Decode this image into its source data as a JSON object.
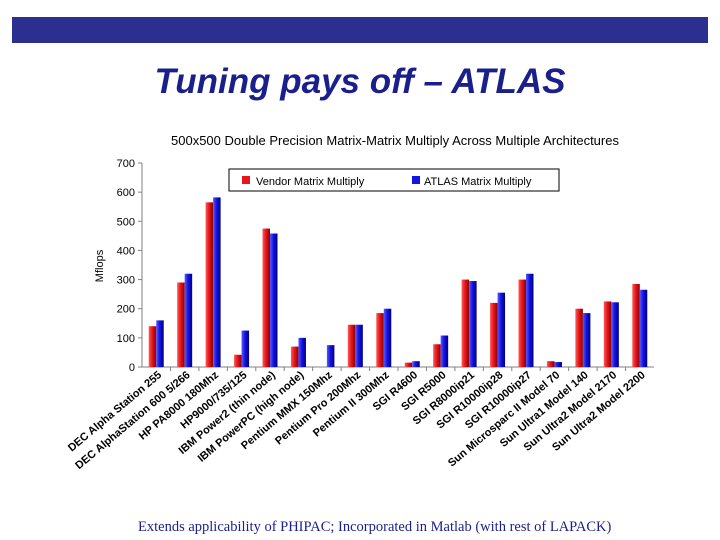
{
  "slide": {
    "title": "Tuning pays off – ATLAS",
    "footer": "Extends applicability of PHIPAC; Incorporated in Matlab (with rest of LAPACK)",
    "accent_color": "#2b2f8f"
  },
  "chart_data": {
    "type": "bar",
    "title": "500x500 Double Precision Matrix-Matrix Multiply Across Multiple Architectures",
    "xlabel": "",
    "ylabel": "Mflops",
    "ylim": [
      0,
      700
    ],
    "yticks": [
      0,
      100,
      200,
      300,
      400,
      500,
      600,
      700
    ],
    "grid": false,
    "legend_position": "top-center",
    "categories": [
      "DEC Alpha Station 255",
      "DEC AlphaStation 600 5/266",
      "HP PA8000 180Mhz",
      "HP9000/735/125",
      "IBM Power2 (thin node)",
      "IBM PowerPC (high node)",
      "Pentium MMX 150Mhz",
      "Pentium Pro 200Mhz",
      "Pentium II 300Mhz",
      "SGI R4600",
      "SGI R5000",
      "SGI R8000ip21",
      "SGI R10000ip28",
      "SGI R10000ip27",
      "Sun Microsparc II Model 70",
      "Sun Ultra1 Model 140",
      "Sun Ultra2 Model 2170",
      "Sun Ultra2 Model 2200"
    ],
    "series": [
      {
        "name": "Vendor Matrix Multiply",
        "color": "#e8161a",
        "values": [
          140,
          290,
          565,
          42,
          475,
          70,
          0,
          145,
          185,
          15,
          78,
          300,
          220,
          300,
          20,
          200,
          225,
          285
        ]
      },
      {
        "name": "ATLAS Matrix Multiply",
        "color": "#1414e6",
        "values": [
          160,
          320,
          582,
          125,
          458,
          100,
          75,
          145,
          200,
          20,
          108,
          295,
          255,
          320,
          17,
          185,
          222,
          265
        ]
      }
    ]
  }
}
